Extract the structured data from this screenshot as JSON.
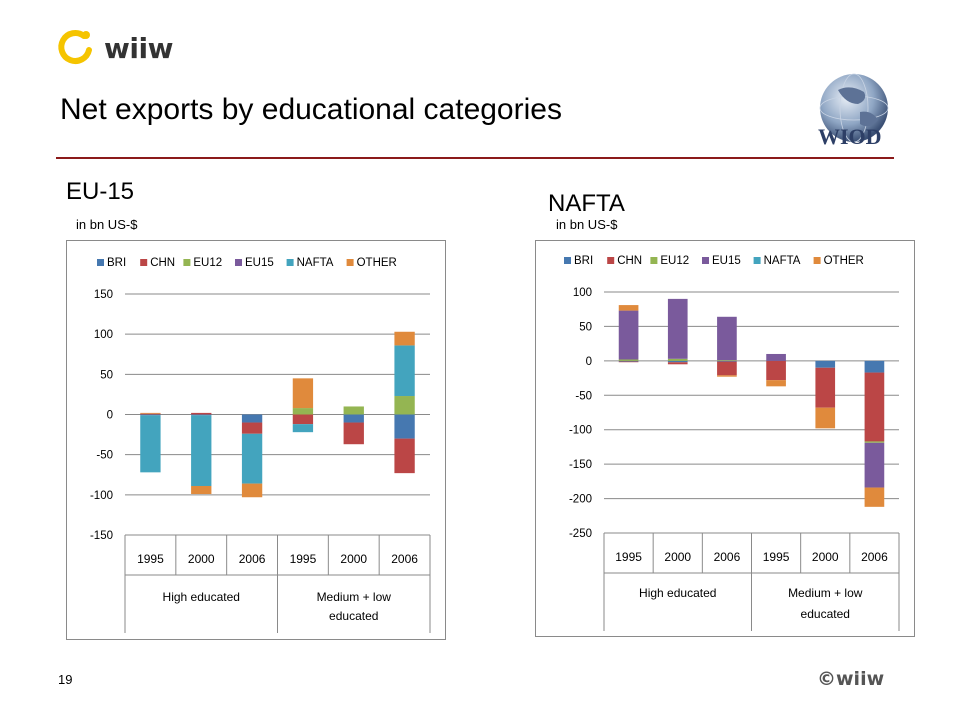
{
  "header": {
    "brand": "wiiw",
    "title": "Net exports by educational categories",
    "logo_right": "WIOD"
  },
  "footer": {
    "page_number": "19",
    "brand": "©wiiw"
  },
  "colors": {
    "BRI": "#4678b0",
    "CHN": "#bb4646",
    "EU12": "#94b552",
    "EU15": "#7a5a9c",
    "NAFTA": "#43a4be",
    "OTHER": "#e08a3c",
    "title_rule": "#8b1a1a"
  },
  "charts": [
    {
      "title": "EU-15",
      "unit": "in bn US-$"
    },
    {
      "title": "NAFTA",
      "unit": "in bn US-$"
    }
  ],
  "chart_data": [
    {
      "type": "bar",
      "stacked": true,
      "title": "EU-15",
      "ylabel": "in bn US-$",
      "ylim": [
        -150,
        150
      ],
      "yticks": [
        150,
        100,
        50,
        0,
        -50,
        -100,
        -150
      ],
      "categories": [
        "1995",
        "2000",
        "2006",
        "1995",
        "2000",
        "2006"
      ],
      "groups": [
        {
          "label": "High educated",
          "categories": [
            "1995",
            "2000",
            "2006"
          ]
        },
        {
          "label": "Medium + low educated",
          "categories": [
            "1995",
            "2000",
            "2006"
          ]
        }
      ],
      "legend": "top",
      "grid": true,
      "series": [
        {
          "name": "BRI",
          "values": [
            -1,
            -1,
            -10,
            0,
            -10,
            -30
          ]
        },
        {
          "name": "CHN",
          "values": [
            1,
            2,
            -14,
            -12,
            -27,
            -43
          ]
        },
        {
          "name": "EU12",
          "values": [
            0,
            0,
            0,
            8,
            10,
            23
          ]
        },
        {
          "name": "EU15",
          "values": [
            0,
            0,
            0,
            0,
            0,
            0
          ]
        },
        {
          "name": "NAFTA",
          "values": [
            -71,
            -88,
            -62,
            -10,
            0,
            63
          ]
        },
        {
          "name": "OTHER",
          "values": [
            1,
            -10,
            -17,
            37,
            0,
            17
          ]
        }
      ]
    },
    {
      "type": "bar",
      "stacked": true,
      "title": "NAFTA",
      "ylabel": "in bn US-$",
      "ylim": [
        -250,
        100
      ],
      "yticks": [
        100,
        50,
        0,
        -50,
        -100,
        -150,
        -200,
        -250
      ],
      "categories": [
        "1995",
        "2000",
        "2006",
        "1995",
        "2000",
        "2006"
      ],
      "groups": [
        {
          "label": "High educated",
          "categories": [
            "1995",
            "2000",
            "2006"
          ]
        },
        {
          "label": "Medium + low educated",
          "categories": [
            "1995",
            "2000",
            "2006"
          ]
        }
      ],
      "legend": "top",
      "grid": true,
      "series": [
        {
          "name": "BRI",
          "values": [
            -1,
            -2,
            -1,
            0,
            -10,
            -17
          ]
        },
        {
          "name": "CHN",
          "values": [
            -1,
            -3,
            -20,
            -28,
            -58,
            -100
          ]
        },
        {
          "name": "EU12",
          "values": [
            2,
            3,
            1,
            0,
            0,
            -2
          ]
        },
        {
          "name": "EU15",
          "values": [
            71,
            87,
            63,
            10,
            0,
            -65
          ]
        },
        {
          "name": "NAFTA",
          "values": [
            0,
            0,
            0,
            0,
            0,
            0
          ]
        },
        {
          "name": "OTHER",
          "values": [
            8,
            0,
            -2,
            -9,
            -30,
            -28
          ]
        }
      ]
    }
  ]
}
